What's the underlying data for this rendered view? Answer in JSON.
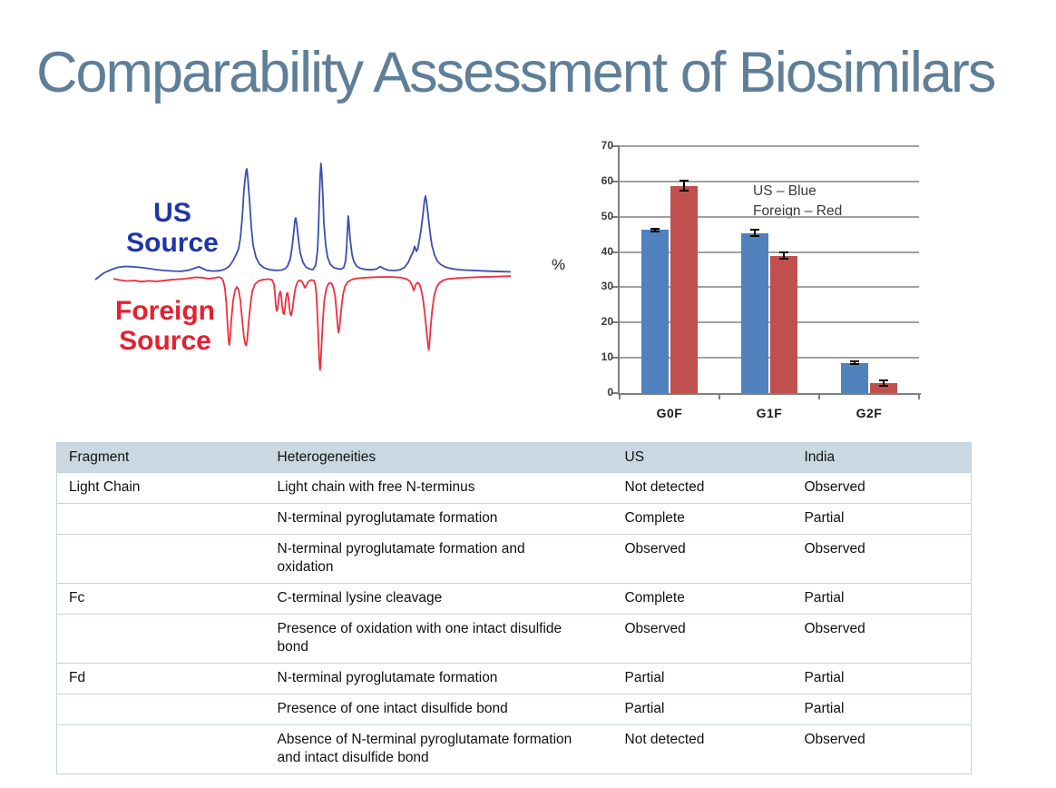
{
  "slide": {
    "title": "Comparability Assessment of Biosimilars",
    "title_color": "#5E7F97"
  },
  "chromatogram": {
    "us_label": "US\nSource",
    "foreign_label": "Foreign\nSource",
    "us_label_color": "#1F36A3",
    "foreign_label_color": "#E6202F",
    "us_trace_color": "#3A50B0",
    "foreign_trace_color": "#EE2F3F"
  },
  "chart_data": {
    "type": "bar",
    "title": "",
    "categories": [
      "G0F",
      "G1F",
      "G2F"
    ],
    "series": [
      {
        "name": "US",
        "color": "#4F81BD",
        "values": [
          46.2,
          45.4,
          8.6
        ],
        "errors": [
          0.5,
          0.8,
          0.4
        ]
      },
      {
        "name": "Foreign",
        "color": "#C0504D",
        "values": [
          58.8,
          38.9,
          2.8
        ],
        "errors": [
          1.5,
          0.9,
          0.8
        ]
      }
    ],
    "xlabel": "",
    "ylabel": "%",
    "ylim": [
      0,
      70
    ],
    "yticks": [
      0,
      10,
      20,
      30,
      40,
      50,
      60,
      70
    ],
    "grid": true,
    "legend_position": "inside-top",
    "legend_lines": [
      "US – Blue",
      "Foreign – Red"
    ]
  },
  "table": {
    "header_bg": "#C9D8E1",
    "headers": [
      "Fragment",
      "Heterogeneities",
      "US",
      "India"
    ],
    "rows": [
      [
        "Light Chain",
        "Light chain with free N-terminus",
        "Not detected",
        "Observed"
      ],
      [
        "",
        "N-terminal pyroglutamate formation",
        "Complete",
        "Partial"
      ],
      [
        "",
        "N-terminal pyroglutamate formation and oxidation",
        "Observed",
        "Observed"
      ],
      [
        "Fc",
        "C-terminal lysine cleavage",
        "Complete",
        "Partial"
      ],
      [
        "",
        "Presence of oxidation with one intact disulfide bond",
        "Observed",
        "Observed"
      ],
      [
        "Fd",
        "N-terminal pyroglutamate formation",
        "Partial",
        "Partial"
      ],
      [
        "",
        "Presence of one intact disulfide bond",
        "Partial",
        "Partial"
      ],
      [
        "",
        "Absence of N-terminal pyroglutamate formation and intact disulfide bond",
        "Not detected",
        "Observed"
      ]
    ]
  }
}
